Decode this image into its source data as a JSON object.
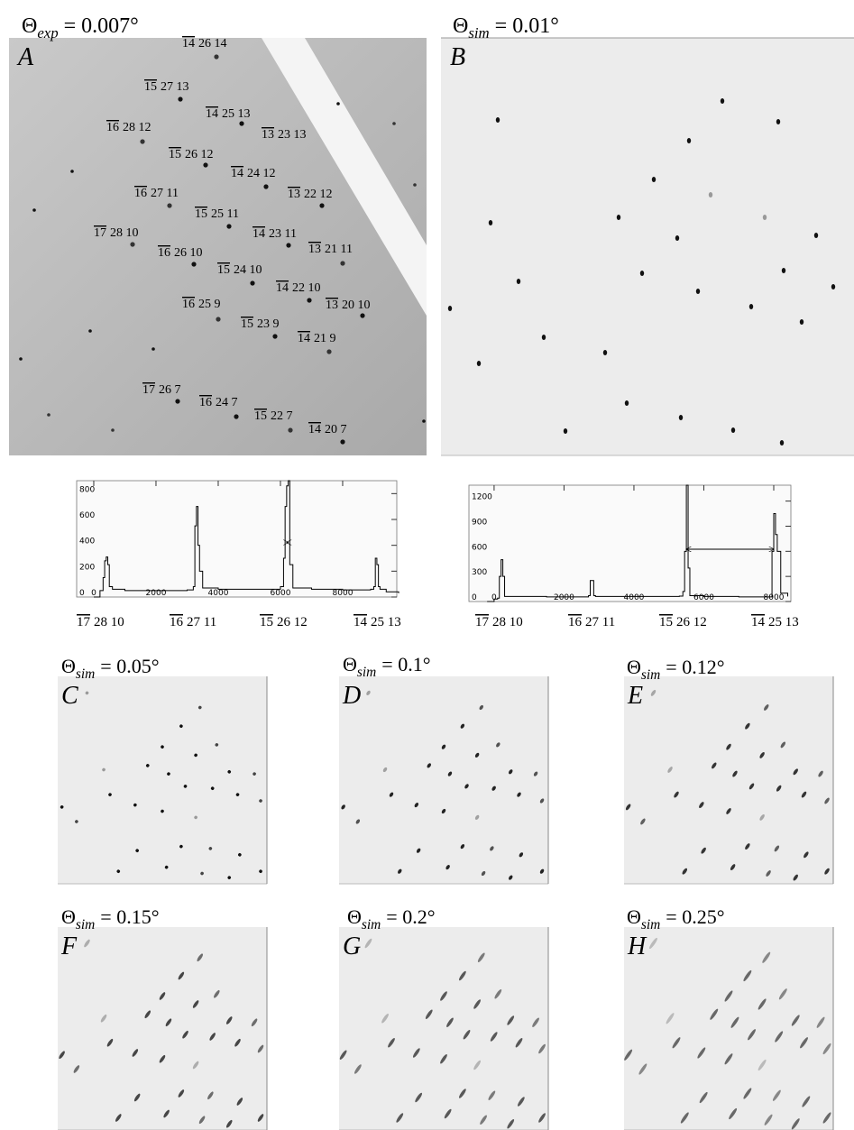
{
  "panels": [
    {
      "letter": "A",
      "title": {
        "symbol": "Θ",
        "sub": "exp",
        "text": "= 0.007°"
      },
      "spot_labels": [
        {
          "h": "14",
          "kl": "26 14"
        },
        {
          "h": "15",
          "kl": "27 13"
        },
        {
          "h": "14",
          "kl": "25 13"
        },
        {
          "h": "16",
          "kl": "28 12"
        },
        {
          "h": "13",
          "kl": "23 13"
        },
        {
          "h": "15",
          "kl": "26 12"
        },
        {
          "h": "14",
          "kl": "24 12"
        },
        {
          "h": "16",
          "kl": "27 11"
        },
        {
          "h": "13",
          "kl": "22 12"
        },
        {
          "h": "15",
          "kl": "25 11"
        },
        {
          "h": "17",
          "kl": "28 10"
        },
        {
          "h": "14",
          "kl": "23 11"
        },
        {
          "h": "16",
          "kl": "26 10"
        },
        {
          "h": "13",
          "kl": "21 11"
        },
        {
          "h": "15",
          "kl": "24 10"
        },
        {
          "h": "14",
          "kl": "22 10"
        },
        {
          "h": "16",
          "kl": "25 9"
        },
        {
          "h": "13",
          "kl": "20 10"
        },
        {
          "h": "15",
          "kl": "23 9"
        },
        {
          "h": "14",
          "kl": "21 9"
        },
        {
          "h": "17",
          "kl": "26 7"
        },
        {
          "h": "16",
          "kl": "24 7"
        },
        {
          "h": "15",
          "kl": "22 7"
        },
        {
          "h": "14",
          "kl": "20 7"
        }
      ]
    },
    {
      "letter": "B",
      "title": {
        "symbol": "Θ",
        "sub": "sim",
        "text": "= 0.01°"
      }
    },
    {
      "letter": "C",
      "title": {
        "symbol": "Θ",
        "sub": "sim",
        "text": "= 0.05°"
      }
    },
    {
      "letter": "D",
      "title": {
        "symbol": "Θ",
        "sub": "sim",
        "text": "= 0.1°"
      }
    },
    {
      "letter": "E",
      "title": {
        "symbol": "Θ",
        "sub": "sim",
        "text": "= 0.12°"
      }
    },
    {
      "letter": "F",
      "title": {
        "symbol": "Θ",
        "sub": "sim",
        "text": "= 0.15°"
      }
    },
    {
      "letter": "G",
      "title": {
        "symbol": "Θ",
        "sub": "sim",
        "text": "= 0.2°"
      }
    },
    {
      "letter": "H",
      "title": {
        "symbol": "Θ",
        "sub": "sim",
        "text": "= 0.25°"
      }
    }
  ],
  "chart_data": [
    {
      "type": "line",
      "color": "#000000",
      "x": [
        0,
        200,
        300,
        350,
        400,
        450,
        500,
        600,
        1000,
        2000,
        3000,
        3200,
        3250,
        3300,
        3350,
        3400,
        3500,
        4000,
        5000,
        6000,
        6100,
        6150,
        6200,
        6250,
        6300,
        6400,
        7000,
        8000,
        8900,
        9000,
        9050,
        9100,
        9150,
        9200,
        9400,
        9800
      ],
      "values": [
        0,
        50,
        150,
        280,
        310,
        250,
        80,
        60,
        50,
        50,
        55,
        80,
        550,
        700,
        400,
        200,
        70,
        60,
        60,
        80,
        300,
        700,
        860,
        900,
        250,
        70,
        60,
        55,
        60,
        80,
        300,
        250,
        80,
        60,
        40,
        30
      ],
      "xlim": [
        -550,
        9740
      ],
      "ylim": [
        0,
        900
      ],
      "xticks": [
        0,
        2000,
        4000,
        6000,
        8000
      ],
      "yticks": [
        0,
        200,
        400,
        600,
        800
      ],
      "annotations": [
        {
          "h": "17",
          "kl": "28 10"
        },
        {
          "h": "16",
          "kl": "27 11"
        },
        {
          "h": "15",
          "kl": "26 12"
        },
        {
          "h": "14",
          "kl": "25 13"
        }
      ]
    },
    {
      "type": "line",
      "color": "#000000",
      "x": [
        -200,
        0,
        100,
        150,
        200,
        250,
        300,
        500,
        1500,
        2600,
        2700,
        2750,
        2800,
        2850,
        2900,
        3500,
        4500,
        5300,
        5400,
        5450,
        5500,
        5550,
        5600,
        6000,
        7000,
        7900,
        7950,
        8000,
        8050,
        8100,
        8200,
        8400
      ],
      "values": [
        0,
        30,
        40,
        300,
        500,
        300,
        60,
        60,
        55,
        55,
        70,
        250,
        250,
        70,
        60,
        60,
        60,
        65,
        120,
        600,
        1390,
        400,
        70,
        60,
        55,
        55,
        600,
        1050,
        800,
        600,
        100,
        60
      ],
      "xlim": [
        -720,
        8490
      ],
      "ylim": [
        0,
        1390
      ],
      "xticks": [
        0,
        2000,
        4000,
        6000,
        8000
      ],
      "yticks": [
        0,
        300,
        600,
        900,
        1200
      ],
      "annotations": [
        {
          "h": "17",
          "kl": "28 10"
        },
        {
          "h": "16",
          "kl": "27 11"
        },
        {
          "h": "15",
          "kl": "26 12"
        },
        {
          "h": "14",
          "kl": "25 13"
        }
      ]
    }
  ]
}
